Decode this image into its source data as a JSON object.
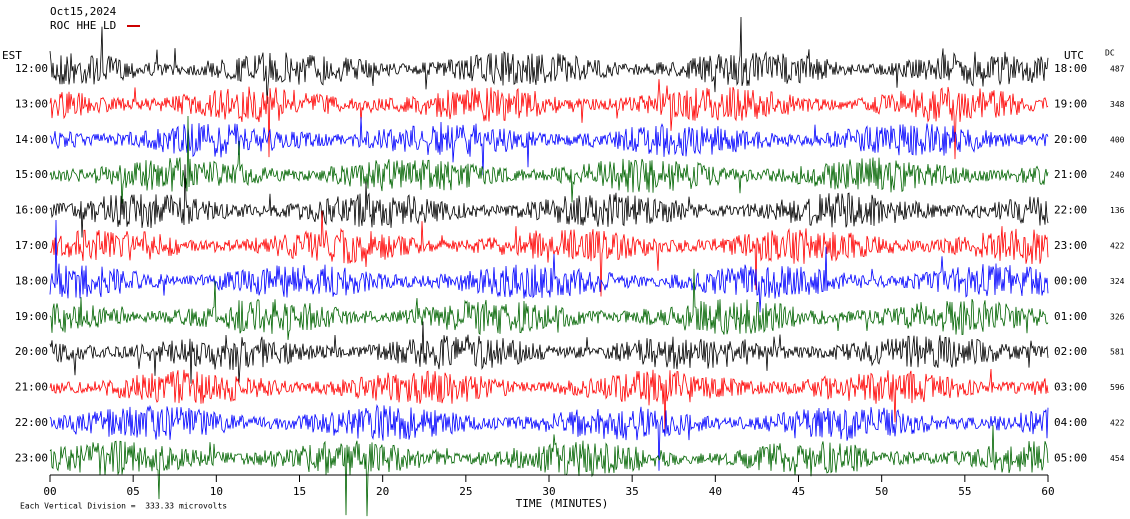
{
  "header": {
    "date": "Oct15,2024",
    "station": "ROC HHE LD"
  },
  "left_axis": {
    "title": "EST",
    "labels": [
      "12:00",
      "13:00",
      "14:00",
      "15:00",
      "16:00",
      "17:00",
      "18:00",
      "19:00",
      "20:00",
      "21:00",
      "22:00",
      "23:00"
    ]
  },
  "right_axis": {
    "title": "UTC",
    "labels": [
      "18:00",
      "19:00",
      "20:00",
      "21:00",
      "22:00",
      "23:00",
      "00:00",
      "01:00",
      "02:00",
      "03:00",
      "04:00",
      "05:00"
    ]
  },
  "dc": {
    "title": "DC",
    "values": [
      "487",
      "348",
      "400",
      "240",
      "136",
      "422",
      "324",
      "326",
      "581",
      "596",
      "422",
      "454"
    ]
  },
  "x_axis": {
    "title": "TIME (MINUTES)",
    "ticks": [
      "00",
      "05",
      "10",
      "15",
      "20",
      "25",
      "30",
      "35",
      "40",
      "45",
      "50",
      "55",
      "60"
    ]
  },
  "footer": {
    "note": "Each Vertical Division =  333.33 microvolts"
  }
}
